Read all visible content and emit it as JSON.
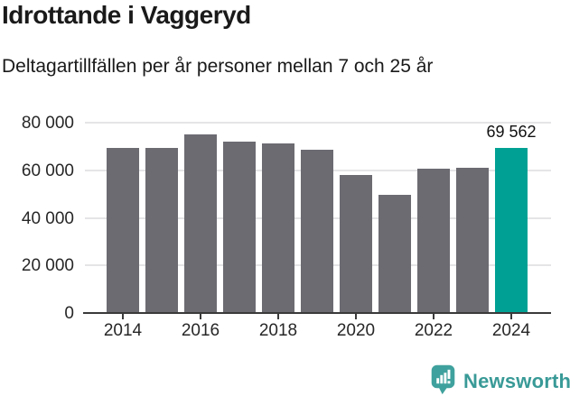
{
  "header": {
    "title": "Idrottande i Vaggeryd",
    "subtitle": "Deltagartillfällen per år personer mellan 7 och 25 år"
  },
  "chart_data": {
    "type": "bar",
    "title": "Idrottande i Vaggeryd",
    "subtitle": "Deltagartillfällen per år personer mellan 7 och 25 år",
    "categories": [
      "2014",
      "2015",
      "2016",
      "2017",
      "2018",
      "2019",
      "2020",
      "2021",
      "2022",
      "2023",
      "2024"
    ],
    "values": [
      69200,
      69200,
      75200,
      72200,
      71400,
      68800,
      58000,
      49500,
      60800,
      61200,
      69562
    ],
    "xlabel": "",
    "ylabel": "",
    "ylim": [
      0,
      80000
    ],
    "grid": true,
    "y_ticks": [
      {
        "value": 0,
        "label": "0"
      },
      {
        "value": 20000,
        "label": "20 000"
      },
      {
        "value": 40000,
        "label": "40 000"
      },
      {
        "value": 60000,
        "label": "60 000"
      },
      {
        "value": 80000,
        "label": "80 000"
      }
    ],
    "x_tick_indices": [
      0,
      2,
      4,
      6,
      8,
      10
    ],
    "bar_color": "#6c6b72",
    "highlight_index": 10,
    "highlight_color": "#00a194",
    "annotation": {
      "index": 10,
      "label": "69 562"
    }
  },
  "footer": {
    "brand": "Newsworthy",
    "brand_color": "#399a97",
    "logo_icon": "newsworthy-chart-bubble-icon",
    "logo_color": "#3fa19d"
  }
}
